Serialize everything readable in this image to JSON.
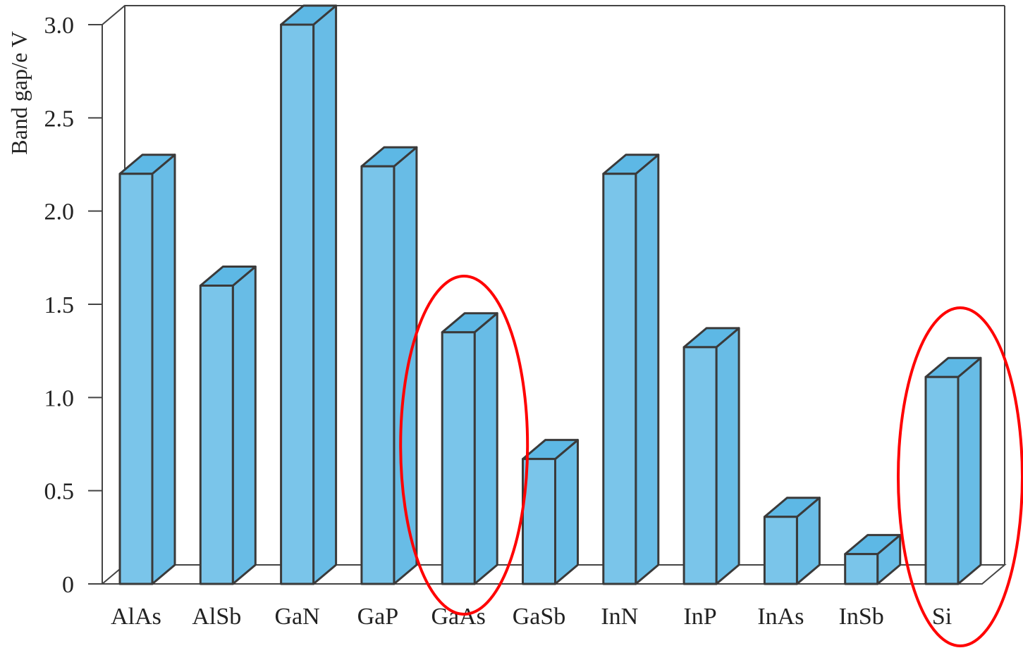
{
  "chart_data": {
    "type": "bar",
    "style": "3d",
    "categories": [
      "AlAs",
      "AlSb",
      "GaN",
      "GaP",
      "GaAs",
      "GaSb",
      "InN",
      "InP",
      "InAs",
      "InSb",
      "Si"
    ],
    "values": [
      2.2,
      1.6,
      3.0,
      2.24,
      1.35,
      0.67,
      2.2,
      1.27,
      0.36,
      0.16,
      1.11
    ],
    "ylabel": "Band gap/e V",
    "yticks": [
      "0",
      "0.5",
      "1.0",
      "1.5",
      "2.0",
      "2.5",
      "3.0"
    ],
    "ylim": [
      0,
      3.0
    ],
    "grid": false,
    "highlighted": [
      "GaAs",
      "Si"
    ],
    "colors": {
      "bar_front": "#7ac5ea",
      "bar_top": "#5db8e5",
      "bar_side": "#68bce6",
      "bar_edge": "#3a3a3a",
      "frame": "#444444",
      "highlight": "#ff0000"
    }
  }
}
